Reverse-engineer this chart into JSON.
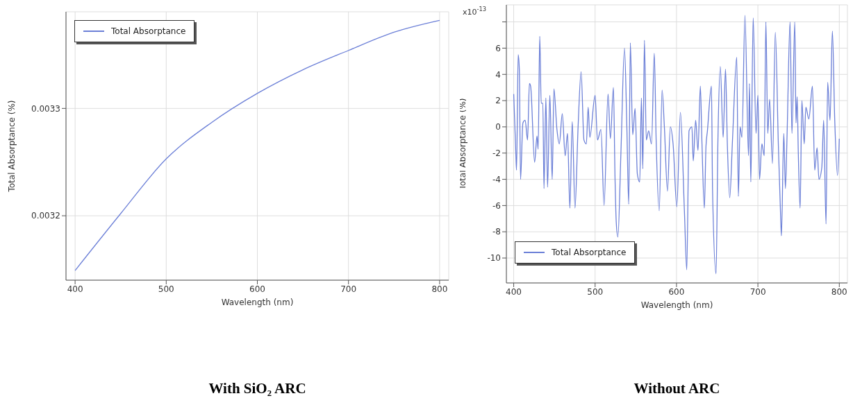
{
  "chart_data": [
    {
      "type": "line",
      "title": "With SiO₂ ARC",
      "xlabel": "Wavelength (nm)",
      "ylabel": "Total Absorptance (%)",
      "xlim": [
        390,
        810
      ],
      "ylim": [
        0.00314,
        0.00339
      ],
      "xticks": [
        400,
        500,
        600,
        700,
        800
      ],
      "yticks": [
        0.0032,
        0.0033
      ],
      "grid": true,
      "legend": "top left",
      "marker": "none",
      "line_style": "solid",
      "series": [
        {
          "name": "Total Absorptance",
          "color": "#6b7fd7",
          "x": [
            400,
            450,
            500,
            550,
            600,
            650,
            700,
            750,
            800
          ],
          "values": [
            0.003149,
            0.003202,
            0.003253,
            0.003287,
            0.003314,
            0.003336,
            0.003354,
            0.003371,
            0.003382
          ]
        }
      ]
    },
    {
      "type": "line",
      "title": "Without ARC",
      "xlabel": "Wavelength (nm)",
      "ylabel": "Total Absorptance (%)",
      "annotations": [
        "x10$^{-13}$"
      ],
      "xlim": [
        391,
        810
      ],
      "ylim": [
        -11.9,
        9.3
      ],
      "xticks": [
        400,
        500,
        600,
        700,
        800
      ],
      "yticks": [
        -10,
        -8,
        -6,
        -4,
        -2,
        0,
        2,
        4,
        6,
        {
          "value": 8,
          "label": null
        }
      ],
      "grid": true,
      "legend": "bottom left",
      "marker": "none",
      "line_style": "solid",
      "series": [
        {
          "name": "Total Absorptance",
          "color": "#6b7fd7",
          "x": [
            400,
            402.6,
            403.5,
            405.5,
            406.9,
            408.4,
            411.3,
            414.1,
            417,
            419.3,
            420.8,
            425.7,
            428.6,
            430,
            432,
            433.8,
            435.8,
            437.2,
            439.5,
            441.6,
            444.4,
            447.3,
            449.4,
            453.1,
            456,
            459.7,
            463.2,
            466.1,
            469,
            471.9,
            475.3,
            479.1,
            482.8,
            486.3,
            489.2,
            491.5,
            493.5,
            500,
            502.9,
            507.2,
            511,
            515.9,
            518.8,
            522.5,
            524.5,
            526,
            528,
            531.7,
            536.1,
            539,
            541.3,
            543.3,
            546.2,
            549.1,
            551.9,
            554.8,
            556.9,
            558.6,
            560.6,
            562.9,
            565.8,
            569.3,
            572.7,
            575,
            578.8,
            582.3,
            585.1,
            588.9,
            592.4,
            595.8,
            600.4,
            604.8,
            609.7,
            612.6,
            615.4,
            618.9,
            620.6,
            623.5,
            626.4,
            629.3,
            631.3,
            634.2,
            636.2,
            638,
            642.9,
            644.3,
            648.6,
            650.9,
            653.8,
            657.3,
            660.2,
            662.5,
            665.4,
            668.8,
            674,
            676,
            678.1,
            680.4,
            684.1,
            688.5,
            689.6,
            691.3,
            694.2,
            697.7,
            700,
            702,
            704.9,
            707.8,
            709.8,
            712.1,
            714.4,
            717.9,
            721.4,
            725.1,
            728,
            728.9,
            731.8,
            733.8,
            735.8,
            739.5,
            741.8,
            745.3,
            746.8,
            748.2,
            749.6,
            751.9,
            754,
            756.9,
            758.9,
            762.6,
            767,
            769.8,
            772.7,
            775,
            778.5,
            780.8,
            783.7,
            785.7,
            788.6,
            791.5,
            794.4,
            797.8,
            800
          ],
          "values": [
            2.5,
            -2,
            -3.3,
            5.5,
            4.4,
            -4,
            0.3,
            0.5,
            -1,
            3.3,
            3.1,
            -2.7,
            -0.7,
            -1.7,
            6.9,
            1.8,
            1.8,
            -4.7,
            2.2,
            -4.6,
            2.4,
            -4,
            2.9,
            -0.2,
            -1.3,
            1,
            -2.2,
            -0.5,
            -6.2,
            0.4,
            -6.2,
            0,
            4.2,
            -1,
            -1.3,
            1.5,
            -0.8,
            2.4,
            -1,
            -0.2,
            -6,
            2.5,
            -0.9,
            3,
            -4,
            -7.3,
            -8.4,
            -2,
            6,
            0,
            -5.9,
            6.4,
            -0.6,
            1.4,
            -3.6,
            -4.2,
            2.2,
            -3.2,
            6.6,
            -1,
            -0.3,
            -1.3,
            5.6,
            -1,
            -6.4,
            2.8,
            0,
            -4.9,
            0,
            -1.3,
            -6.1,
            1.1,
            -6.4,
            -10.9,
            -0.3,
            0,
            -2.6,
            0.5,
            -1.8,
            3.1,
            -1.3,
            -6.2,
            -1.5,
            -0.3,
            3.1,
            -4.9,
            -11.2,
            -1,
            4.6,
            -0.8,
            4.4,
            -1.4,
            -5.4,
            -1,
            5.3,
            -5.3,
            0,
            -0.8,
            8.5,
            -2.2,
            3.3,
            -4.2,
            8.3,
            -0.5,
            2.4,
            -4,
            -1.3,
            -2.2,
            8,
            -0.5,
            2.1,
            -2.8,
            7.2,
            -1.3,
            -7,
            -8.3,
            -0.5,
            -4.7,
            -0.7,
            8,
            -0.5,
            8,
            0.3,
            2.3,
            -1.9,
            -6.2,
            2,
            -1.3,
            1.5,
            0.6,
            3.1,
            -3.3,
            -1.6,
            -4,
            -3.1,
            0.5,
            -7.4,
            3.4,
            0.5,
            7.3,
            0.5,
            -3.7,
            -0.9
          ]
        }
      ]
    }
  ]
}
